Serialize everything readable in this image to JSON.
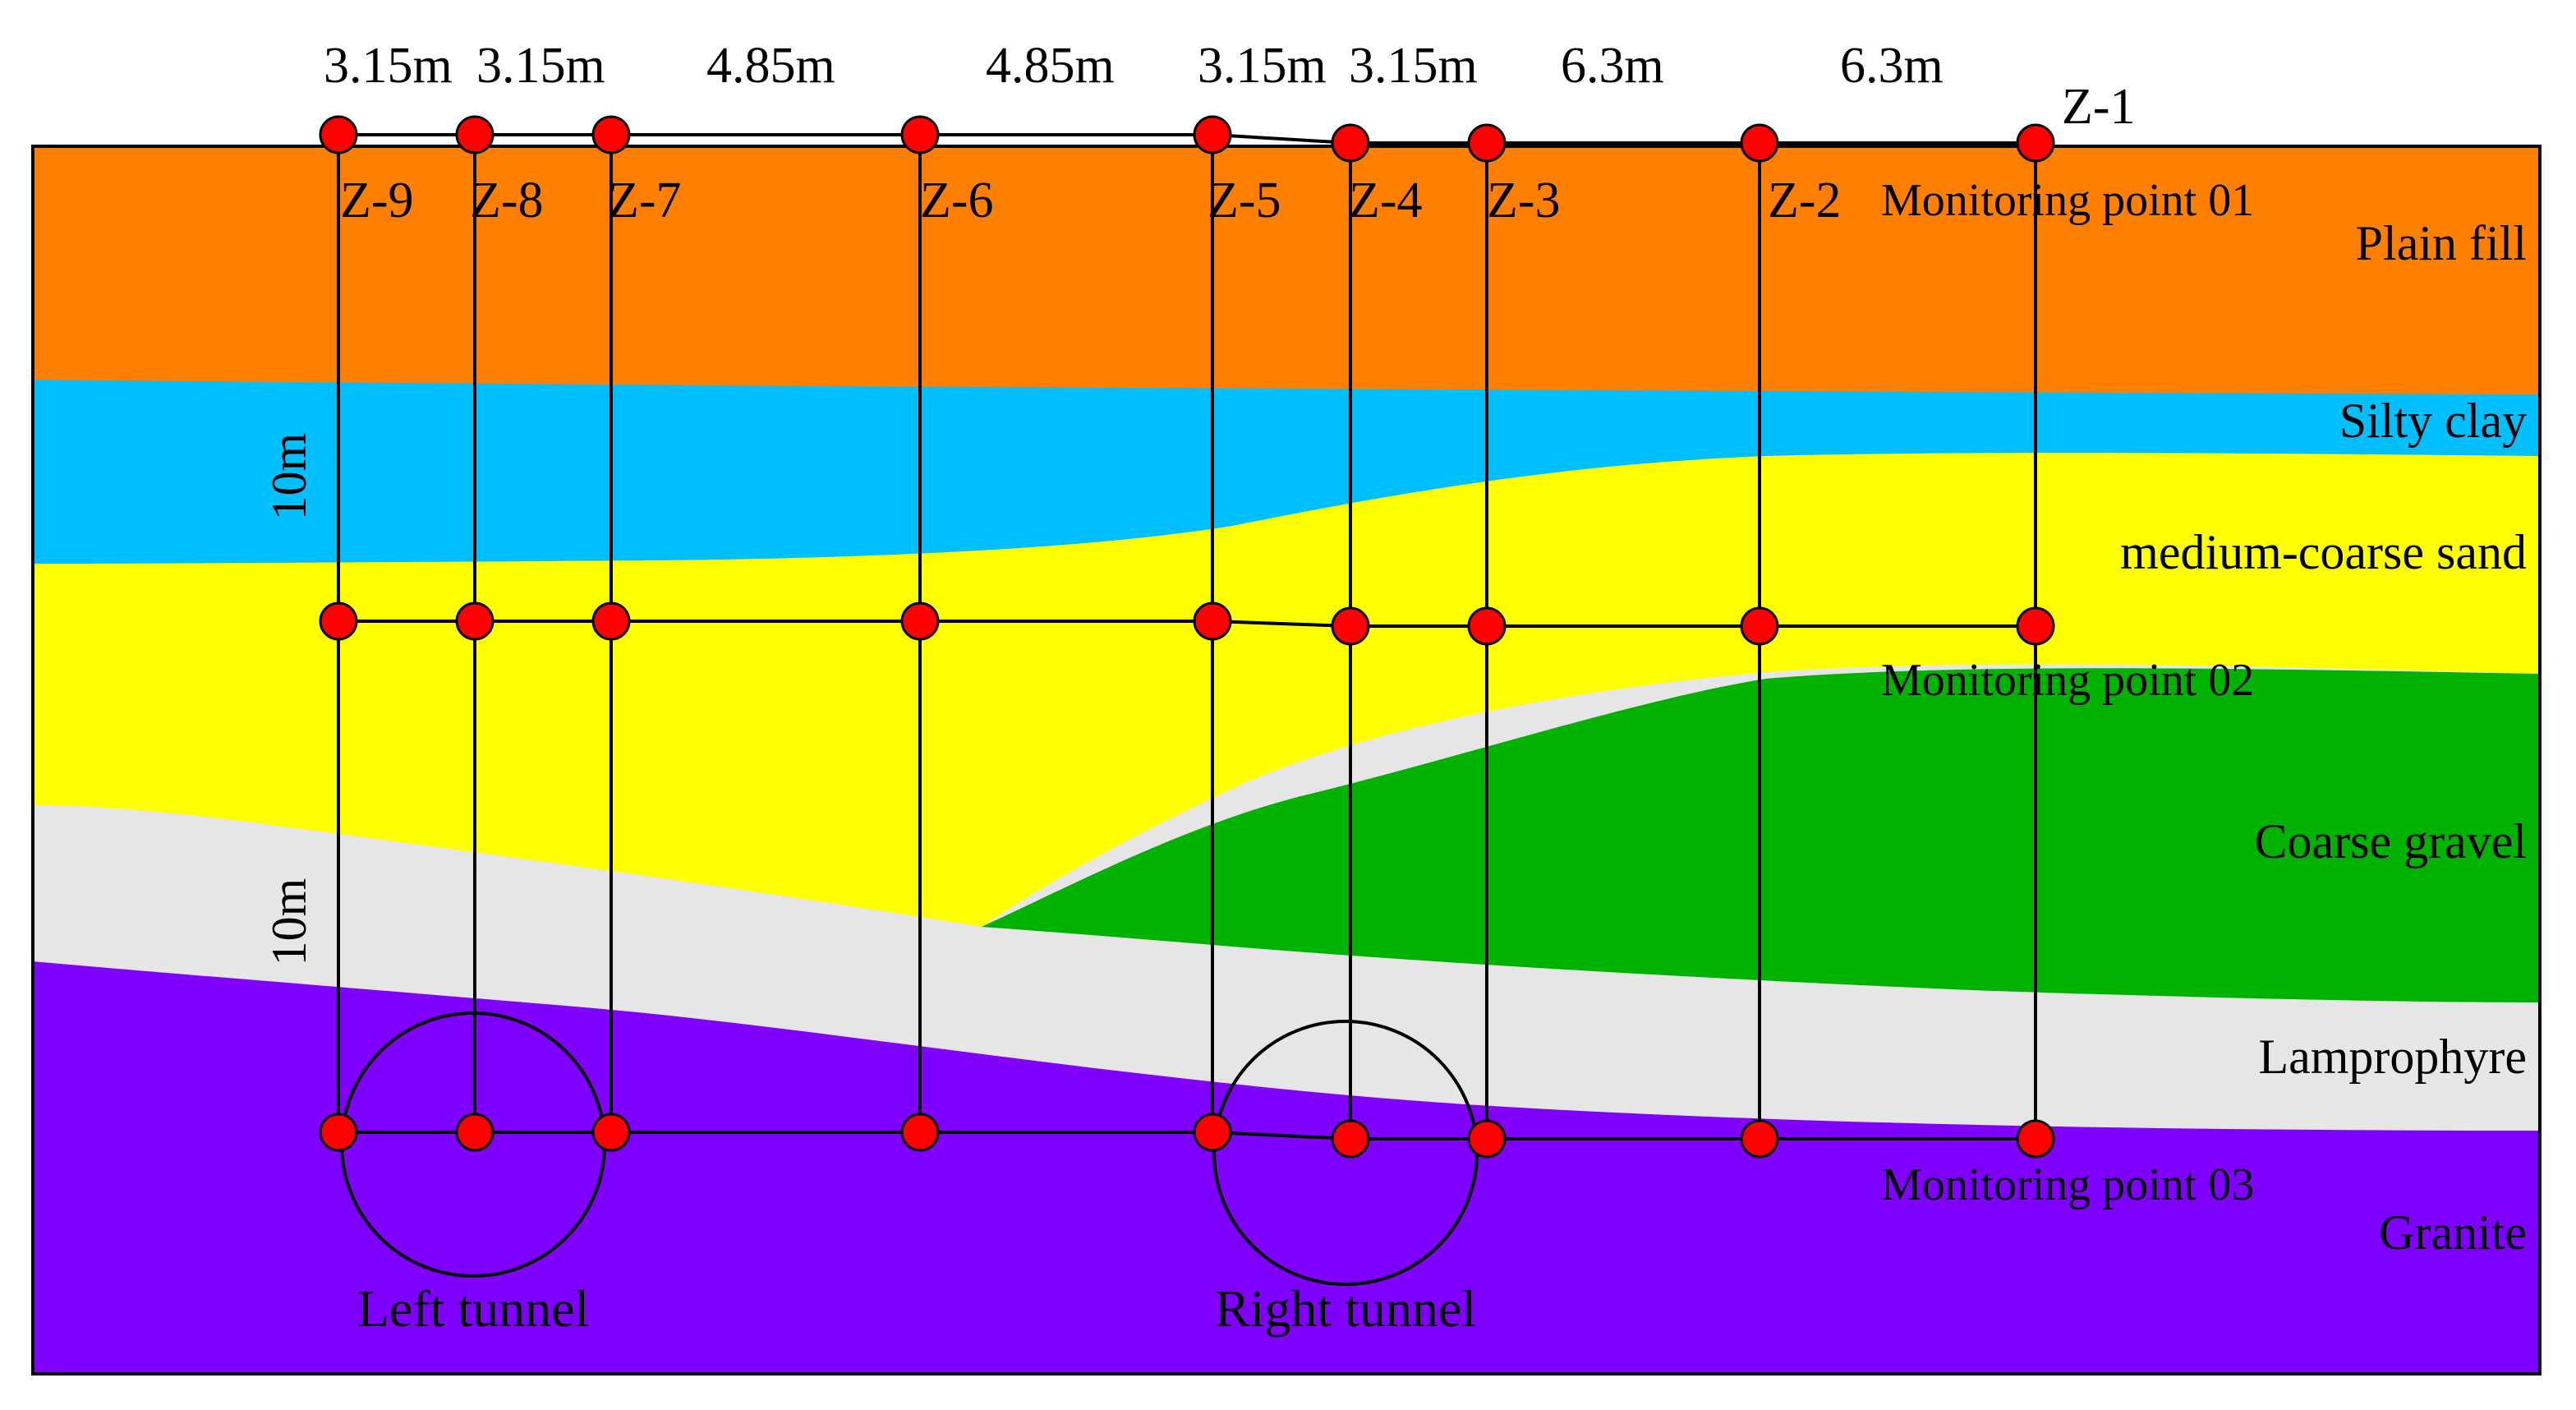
{
  "colors": {
    "plain_fill": "#ff7f00",
    "silty_clay": "#00bfff",
    "medium_coarse_sand": "#ffff00",
    "coarse_gravel": "#00b200",
    "lamprophyre": "#e6e6e6",
    "granite": "#7f00ff",
    "monitoring_marker": "#ff0000",
    "line": "#000000"
  },
  "spacings": [
    "3.15m",
    "3.15m",
    "4.85m",
    "4.85m",
    "3.15m",
    "3.15m",
    "6.3m",
    "6.3m"
  ],
  "survey_lines": [
    "Z-9",
    "Z-8",
    "Z-7",
    "Z-6",
    "Z-5",
    "Z-4",
    "Z-3",
    "Z-2",
    "Z-1"
  ],
  "monitoring_points": [
    "Monitoring point 01",
    "Monitoring point 02",
    "Monitoring point 03"
  ],
  "layers": [
    "Plain fill",
    "Silty clay",
    "medium-coarse sand",
    "Coarse gravel",
    "Lamprophyre",
    "Granite"
  ],
  "vertical_dimensions": [
    "10m",
    "10m"
  ],
  "tunnels": {
    "left": "Left tunnel",
    "right": "Right tunnel"
  }
}
